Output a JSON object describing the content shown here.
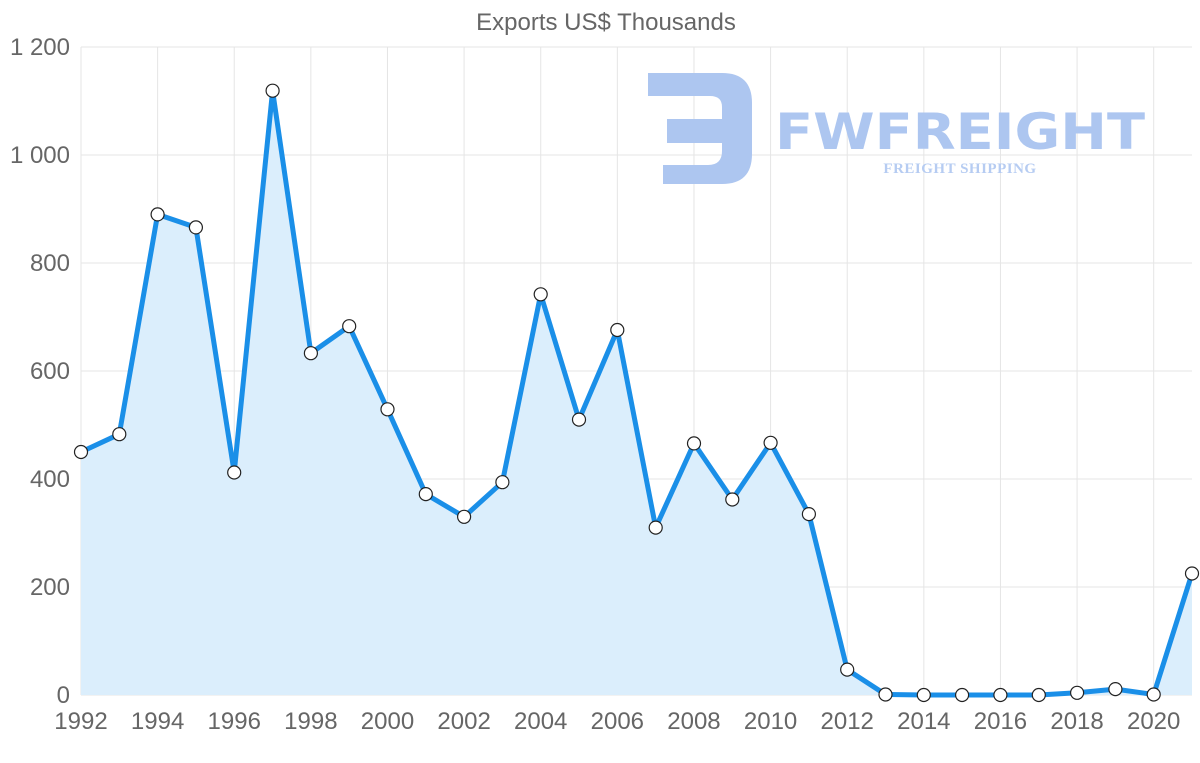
{
  "chart_data": {
    "type": "line",
    "title": "Exports US$ Thousands",
    "xlabel": "",
    "ylabel": "",
    "xlim": [
      1992,
      2021
    ],
    "ylim": [
      0,
      1200
    ],
    "y_ticks": [
      {
        "value": 0,
        "label": "0"
      },
      {
        "value": 200,
        "label": "200"
      },
      {
        "value": 400,
        "label": "400"
      },
      {
        "value": 600,
        "label": "600"
      },
      {
        "value": 800,
        "label": "800"
      },
      {
        "value": 1000,
        "label": "1 000"
      },
      {
        "value": 1200,
        "label": "1 200"
      }
    ],
    "x_ticks": [
      {
        "value": 1992,
        "label": "1992"
      },
      {
        "value": 1994,
        "label": "1994"
      },
      {
        "value": 1996,
        "label": "1996"
      },
      {
        "value": 1998,
        "label": "1998"
      },
      {
        "value": 2000,
        "label": "2000"
      },
      {
        "value": 2002,
        "label": "2002"
      },
      {
        "value": 2004,
        "label": "2004"
      },
      {
        "value": 2006,
        "label": "2006"
      },
      {
        "value": 2008,
        "label": "2008"
      },
      {
        "value": 2010,
        "label": "2010"
      },
      {
        "value": 2012,
        "label": "2012"
      },
      {
        "value": 2014,
        "label": "2014"
      },
      {
        "value": 2016,
        "label": "2016"
      },
      {
        "value": 2018,
        "label": "2018"
      },
      {
        "value": 2020,
        "label": "2020"
      }
    ],
    "grid": true,
    "legend": "none",
    "series": [
      {
        "name": "Exports US$ Thousands",
        "color": "#1a8fe8",
        "fill_color": "#dbeefc",
        "x": [
          1992,
          1993,
          1994,
          1995,
          1996,
          1997,
          1998,
          1999,
          2000,
          2001,
          2002,
          2003,
          2004,
          2005,
          2006,
          2007,
          2008,
          2009,
          2010,
          2011,
          2012,
          2013,
          2014,
          2015,
          2016,
          2017,
          2018,
          2019,
          2020,
          2021
        ],
        "values": [
          450,
          483,
          890,
          866,
          412,
          1119,
          633,
          683,
          529,
          372,
          330,
          394,
          742,
          510,
          676,
          310,
          466,
          362,
          467,
          335,
          47,
          1,
          0,
          0,
          0,
          0,
          4,
          11,
          1,
          225
        ]
      }
    ]
  },
  "watermark": {
    "brand": "FWFREIGHT",
    "tagline": "FREIGHT SHIPPING",
    "logo": "fw-logo-icon",
    "color": "#adc6f0"
  }
}
